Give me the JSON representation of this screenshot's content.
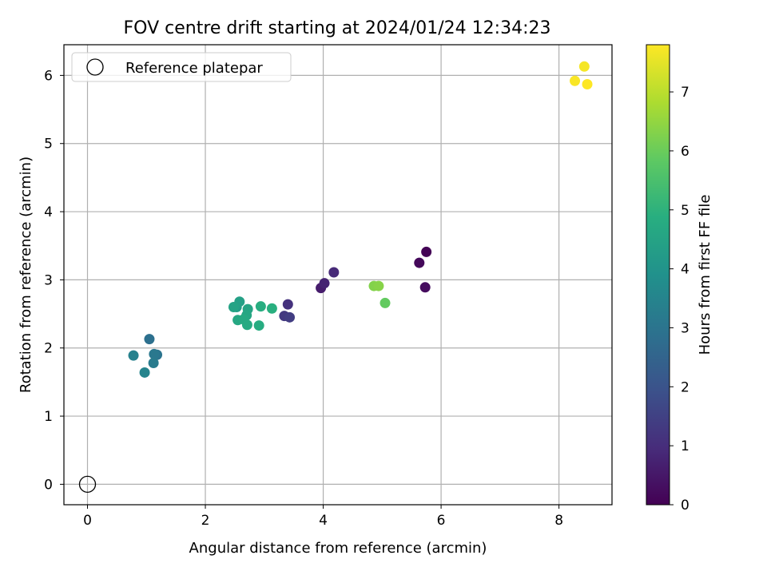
{
  "chart_data": {
    "type": "scatter",
    "title": "FOV centre drift starting at 2024/01/24 12:34:23",
    "xlabel": "Angular distance from reference (arcmin)",
    "ylabel": "Rotation from reference (arcmin)",
    "xlim": [
      -0.4,
      8.9
    ],
    "ylim": [
      -0.3,
      6.45
    ],
    "xticks": [
      "0",
      "2",
      "4",
      "6",
      "8"
    ],
    "yticks": [
      "0",
      "1",
      "2",
      "3",
      "4",
      "5",
      "6"
    ],
    "grid": true,
    "legend": {
      "position": "top-left",
      "label": "Reference platepar"
    },
    "reference_point": {
      "x": 0,
      "y": 0
    },
    "colorbar": {
      "label": "Hours from first FF file",
      "min": 0,
      "max": 7.8,
      "ticks": [
        "0",
        "1",
        "2",
        "3",
        "4",
        "5",
        "6",
        "7"
      ],
      "colormap": "viridis"
    },
    "points": [
      {
        "x": 5.75,
        "y": 3.41,
        "hours": 0.05
      },
      {
        "x": 5.63,
        "y": 3.25,
        "hours": 0.15
      },
      {
        "x": 5.73,
        "y": 2.89,
        "hours": 0.25
      },
      {
        "x": 3.96,
        "y": 2.88,
        "hours": 0.6
      },
      {
        "x": 4.02,
        "y": 2.95,
        "hours": 0.75
      },
      {
        "x": 4.18,
        "y": 3.11,
        "hours": 0.9
      },
      {
        "x": 3.4,
        "y": 2.64,
        "hours": 1.1
      },
      {
        "x": 3.34,
        "y": 2.47,
        "hours": 1.3
      },
      {
        "x": 3.43,
        "y": 2.45,
        "hours": 1.4
      },
      {
        "x": 1.05,
        "y": 2.13,
        "hours": 2.85
      },
      {
        "x": 1.18,
        "y": 1.9,
        "hours": 3.0
      },
      {
        "x": 1.13,
        "y": 1.91,
        "hours": 3.1
      },
      {
        "x": 1.12,
        "y": 1.78,
        "hours": 3.2
      },
      {
        "x": 0.78,
        "y": 1.89,
        "hours": 3.4
      },
      {
        "x": 0.97,
        "y": 1.64,
        "hours": 3.5
      },
      {
        "x": 2.53,
        "y": 2.6,
        "hours": 4.3
      },
      {
        "x": 2.58,
        "y": 2.68,
        "hours": 4.4
      },
      {
        "x": 2.48,
        "y": 2.6,
        "hours": 4.5
      },
      {
        "x": 2.72,
        "y": 2.57,
        "hours": 4.55
      },
      {
        "x": 2.7,
        "y": 2.48,
        "hours": 4.6
      },
      {
        "x": 2.55,
        "y": 2.41,
        "hours": 4.65
      },
      {
        "x": 2.65,
        "y": 2.42,
        "hours": 4.7
      },
      {
        "x": 2.71,
        "y": 2.34,
        "hours": 4.75
      },
      {
        "x": 2.91,
        "y": 2.33,
        "hours": 4.8
      },
      {
        "x": 2.94,
        "y": 2.61,
        "hours": 4.85
      },
      {
        "x": 3.13,
        "y": 2.58,
        "hours": 4.9
      },
      {
        "x": 5.05,
        "y": 2.66,
        "hours": 5.9
      },
      {
        "x": 4.86,
        "y": 2.91,
        "hours": 6.3
      },
      {
        "x": 4.94,
        "y": 2.91,
        "hours": 6.35
      },
      {
        "x": 8.43,
        "y": 6.13,
        "hours": 7.7
      },
      {
        "x": 8.27,
        "y": 5.92,
        "hours": 7.75
      },
      {
        "x": 8.48,
        "y": 5.87,
        "hours": 7.8
      }
    ]
  }
}
